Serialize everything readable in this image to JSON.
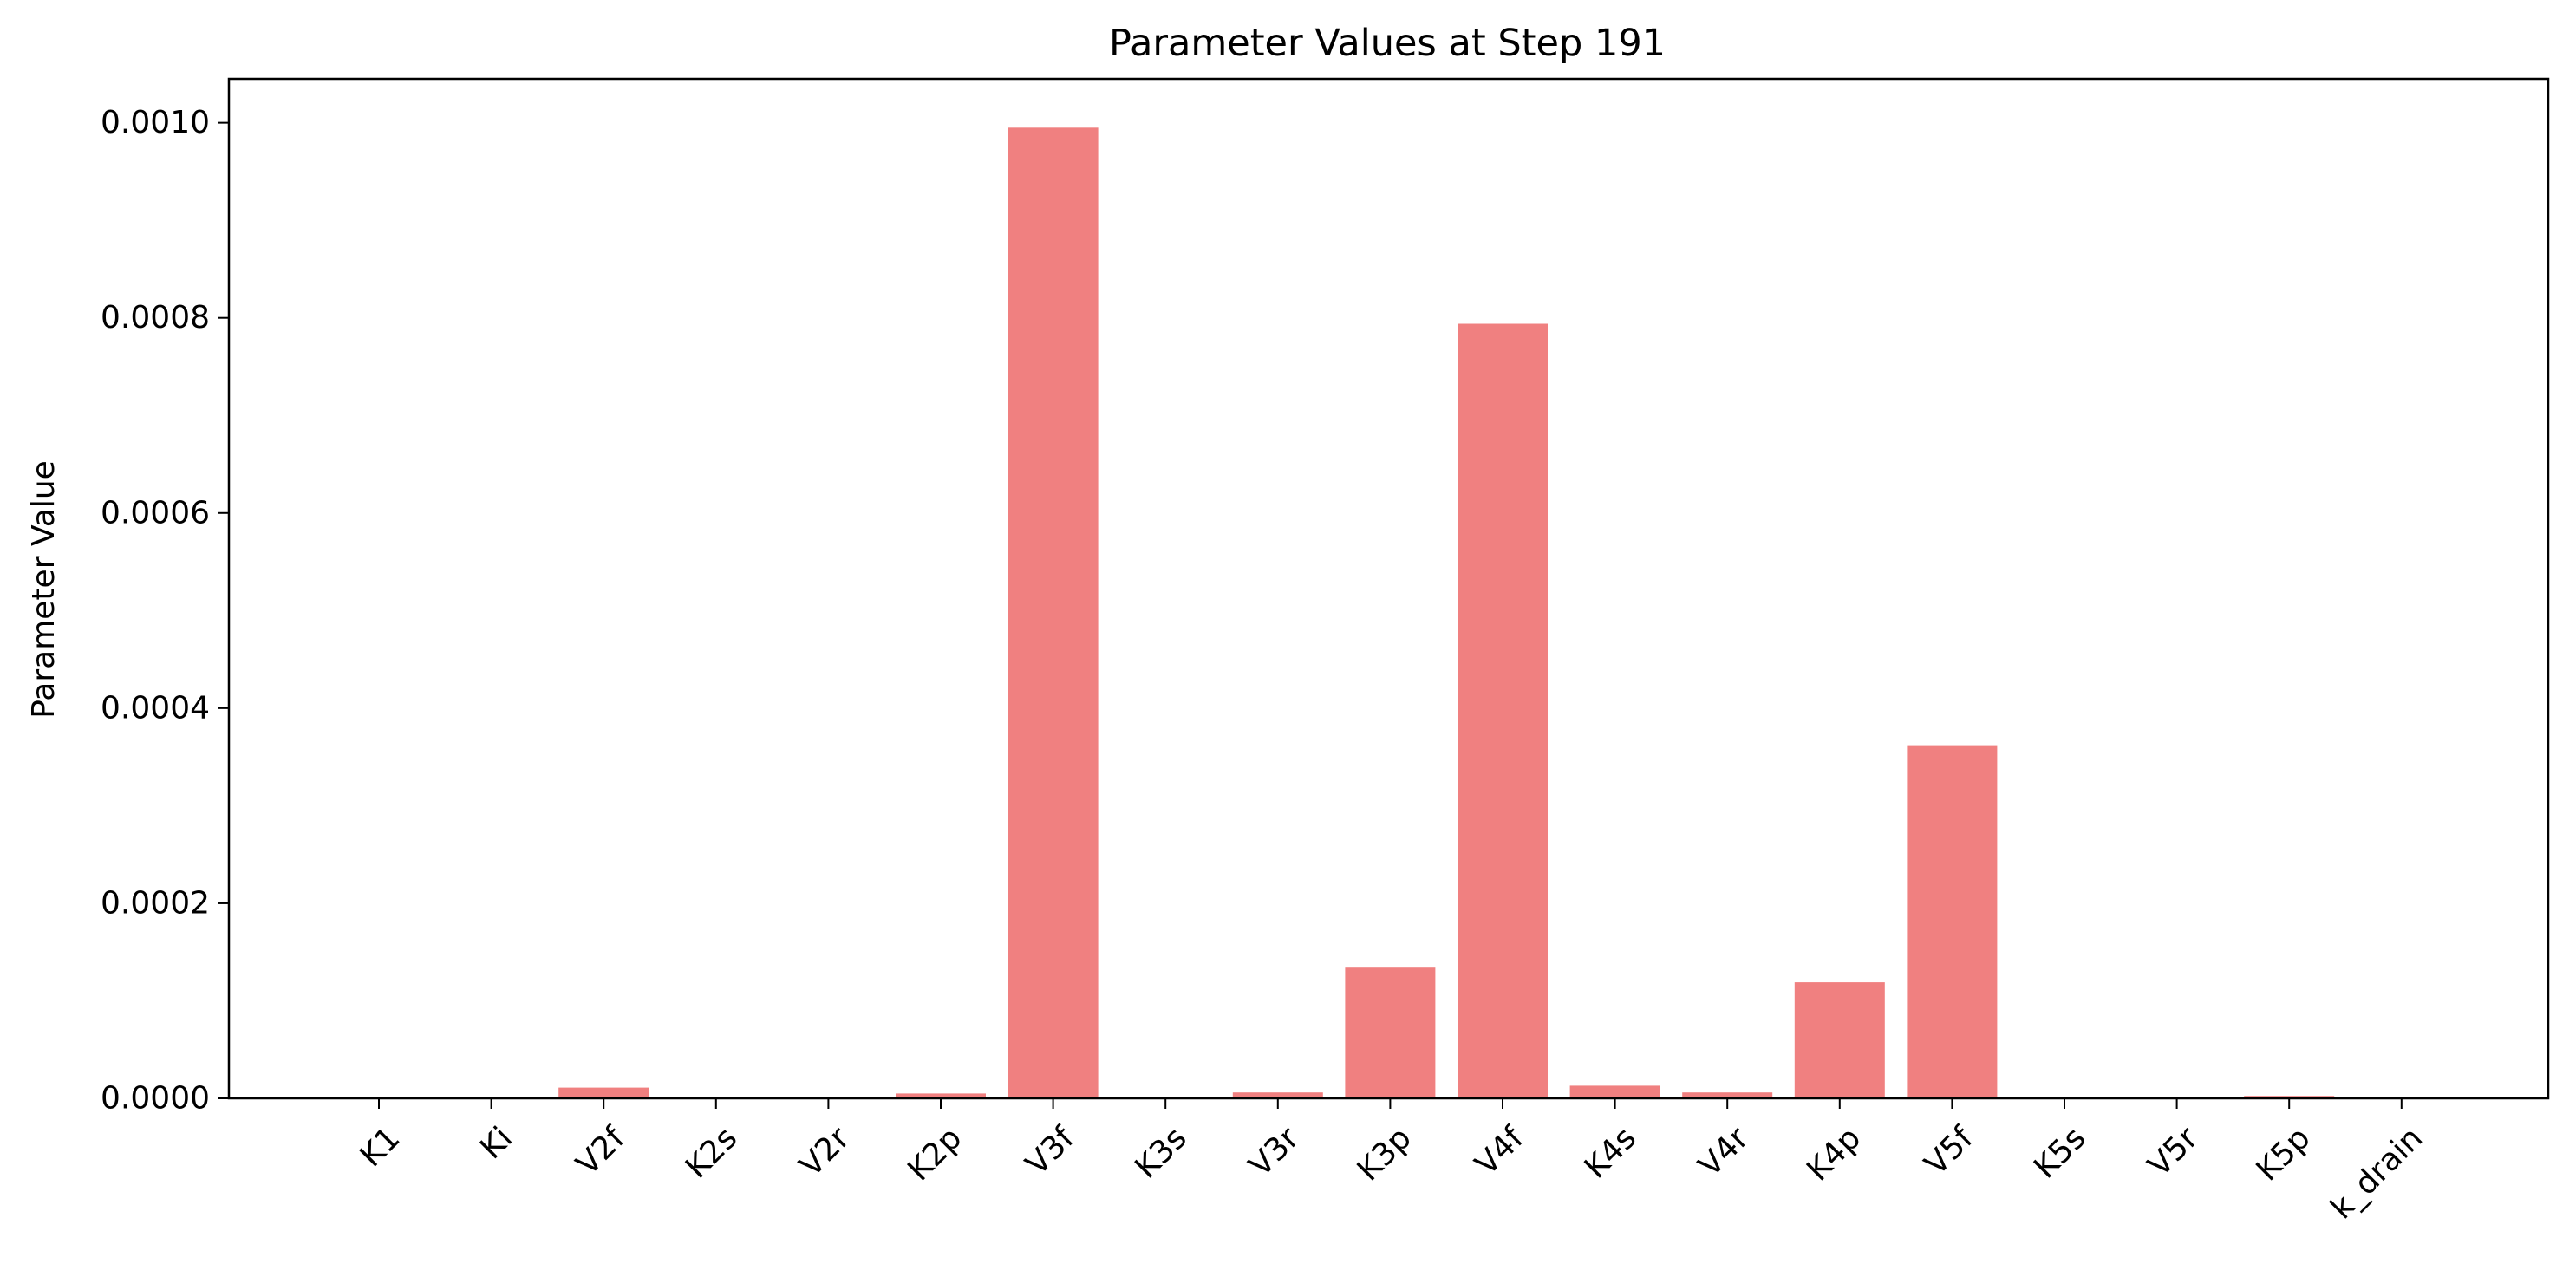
{
  "chart_data": {
    "type": "bar",
    "title": "Parameter Values at Step 191",
    "xlabel": "",
    "ylabel": "Parameter Value",
    "categories": [
      "K1",
      "Ki",
      "V2f",
      "K2s",
      "V2r",
      "K2p",
      "V3f",
      "K3s",
      "V3r",
      "K3p",
      "V4f",
      "K4s",
      "V4r",
      "K4p",
      "V5f",
      "K5s",
      "V5r",
      "K5p",
      "k_drain"
    ],
    "values": [
      0.0,
      0.0,
      1.1e-05,
      1.5e-06,
      5e-07,
      5e-06,
      0.000995,
      1.5e-06,
      6e-06,
      0.000134,
      0.000794,
      1.3e-05,
      6e-06,
      0.000119,
      0.000362,
      5e-07,
      5e-07,
      2.5e-06,
      0.0
    ],
    "ylim": [
      0,
      0.001045
    ],
    "yticks": [
      "0.0000",
      "0.0002",
      "0.0004",
      "0.0006",
      "0.0008",
      "0.0010"
    ],
    "ytick_values": [
      0,
      0.0002,
      0.0004,
      0.0006,
      0.0008,
      0.001
    ],
    "bar_color": "#f08080",
    "grid": false,
    "legend": "none"
  }
}
